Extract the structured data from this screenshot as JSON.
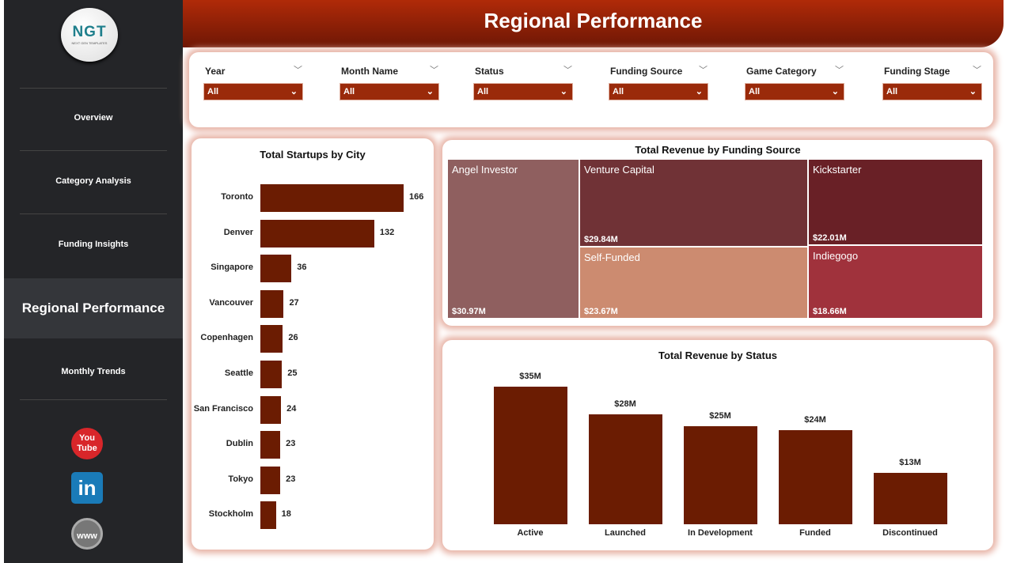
{
  "sidebar": {
    "logo_text": "NGT",
    "logo_sub": "NEXT GEN TEMPLATES",
    "items": [
      {
        "label": "Overview"
      },
      {
        "label": "Category Analysis"
      },
      {
        "label": "Funding Insights"
      },
      {
        "label": "Regional Performance"
      },
      {
        "label": "Monthly Trends"
      }
    ],
    "social": [
      "youtube-icon",
      "linkedin-icon",
      "web-icon"
    ],
    "youtube_text": "You Tube",
    "linkedin_text": "in",
    "web_text": "www"
  },
  "header": {
    "title": "Regional Performance"
  },
  "filters": [
    {
      "label": "Year",
      "value": "All"
    },
    {
      "label": "Month Name",
      "value": "All"
    },
    {
      "label": "Status",
      "value": "All"
    },
    {
      "label": "Funding Source",
      "value": "All"
    },
    {
      "label": "Game Category",
      "value": "All"
    },
    {
      "label": "Funding Stage",
      "value": "All"
    }
  ],
  "chart_data": [
    {
      "type": "bar",
      "orientation": "horizontal",
      "title": "Total Startups by City",
      "categories": [
        "Toronto",
        "Denver",
        "Singapore",
        "Vancouver",
        "Copenhagen",
        "Seattle",
        "San Francisco",
        "Dublin",
        "Tokyo",
        "Stockholm"
      ],
      "values": [
        166,
        132,
        36,
        27,
        26,
        25,
        24,
        23,
        23,
        18
      ]
    },
    {
      "type": "treemap",
      "title": "Total Revenue by Funding Source",
      "items": [
        {
          "name": "Angel Investor",
          "value": 30.97,
          "label": "$30.97M",
          "color": "#8f5f5f"
        },
        {
          "name": "Venture Capital",
          "value": 29.84,
          "label": "$29.84M",
          "color": "#703236"
        },
        {
          "name": "Self-Funded",
          "value": 23.67,
          "label": "$23.67M",
          "color": "#cc8b70"
        },
        {
          "name": "Kickstarter",
          "value": 22.01,
          "label": "$22.01M",
          "color": "#692026"
        },
        {
          "name": "Indiegogo",
          "value": 18.66,
          "label": "$18.66M",
          "color": "#a0323c"
        }
      ]
    },
    {
      "type": "bar",
      "title": "Total Revenue by Status",
      "categories": [
        "Active",
        "Launched",
        "In Development",
        "Funded",
        "Discontinued"
      ],
      "values": [
        35,
        28,
        25,
        24,
        13
      ],
      "labels": [
        "$35M",
        "$28M",
        "$25M",
        "$24M",
        "$13M"
      ],
      "unit": "$M"
    }
  ]
}
